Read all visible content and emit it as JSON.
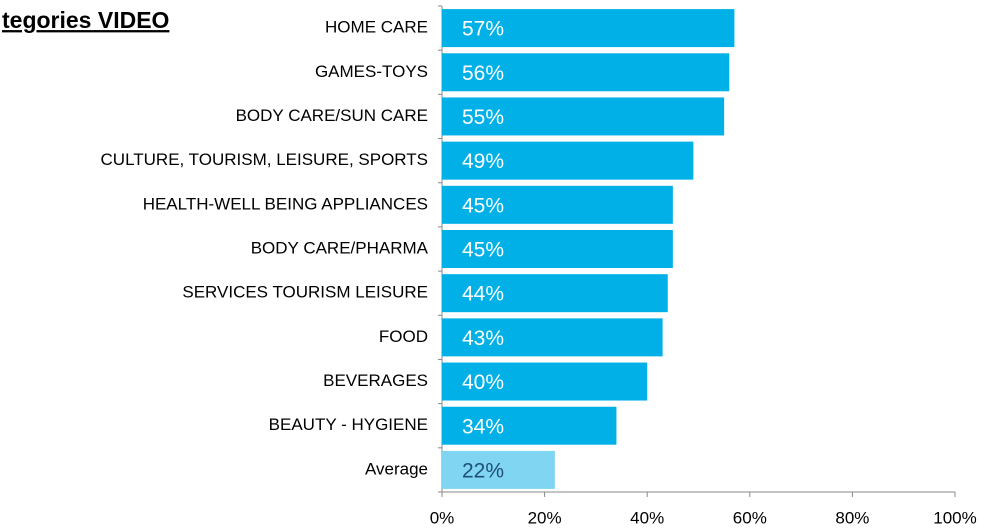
{
  "chart_data": {
    "type": "bar",
    "orientation": "horizontal",
    "title": "tegories VIDEO",
    "categories": [
      "HOME CARE",
      "GAMES-TOYS",
      "BODY CARE/SUN CARE",
      "CULTURE, TOURISM, LEISURE, SPORTS",
      "HEALTH-WELL BEING APPLIANCES",
      "BODY CARE/PHARMA",
      "SERVICES TOURISM LEISURE",
      "FOOD",
      "BEVERAGES",
      "BEAUTY - HYGIENE",
      "Average"
    ],
    "values": [
      57,
      56,
      55,
      49,
      45,
      45,
      44,
      43,
      40,
      34,
      22
    ],
    "value_labels": [
      "57%",
      "56%",
      "55%",
      "49%",
      "45%",
      "45%",
      "44%",
      "43%",
      "40%",
      "34%",
      "22%"
    ],
    "colors": [
      "#00b0e6",
      "#00b0e6",
      "#00b0e6",
      "#00b0e6",
      "#00b0e6",
      "#00b0e6",
      "#00b0e6",
      "#00b0e6",
      "#00b0e6",
      "#00b0e6",
      "#7fd5f2"
    ],
    "value_label_colors": [
      "#ffffff",
      "#ffffff",
      "#ffffff",
      "#ffffff",
      "#ffffff",
      "#ffffff",
      "#ffffff",
      "#ffffff",
      "#ffffff",
      "#ffffff",
      "#1f4e79"
    ],
    "xlim": [
      0,
      100
    ],
    "xticks": [
      {
        "value": 0,
        "label": "0%"
      },
      {
        "value": 20,
        "label": "20%"
      },
      {
        "value": 40,
        "label": "40%"
      },
      {
        "value": 60,
        "label": "60%"
      },
      {
        "value": 80,
        "label": "80%"
      },
      {
        "value": 100,
        "label": "100%"
      }
    ]
  }
}
